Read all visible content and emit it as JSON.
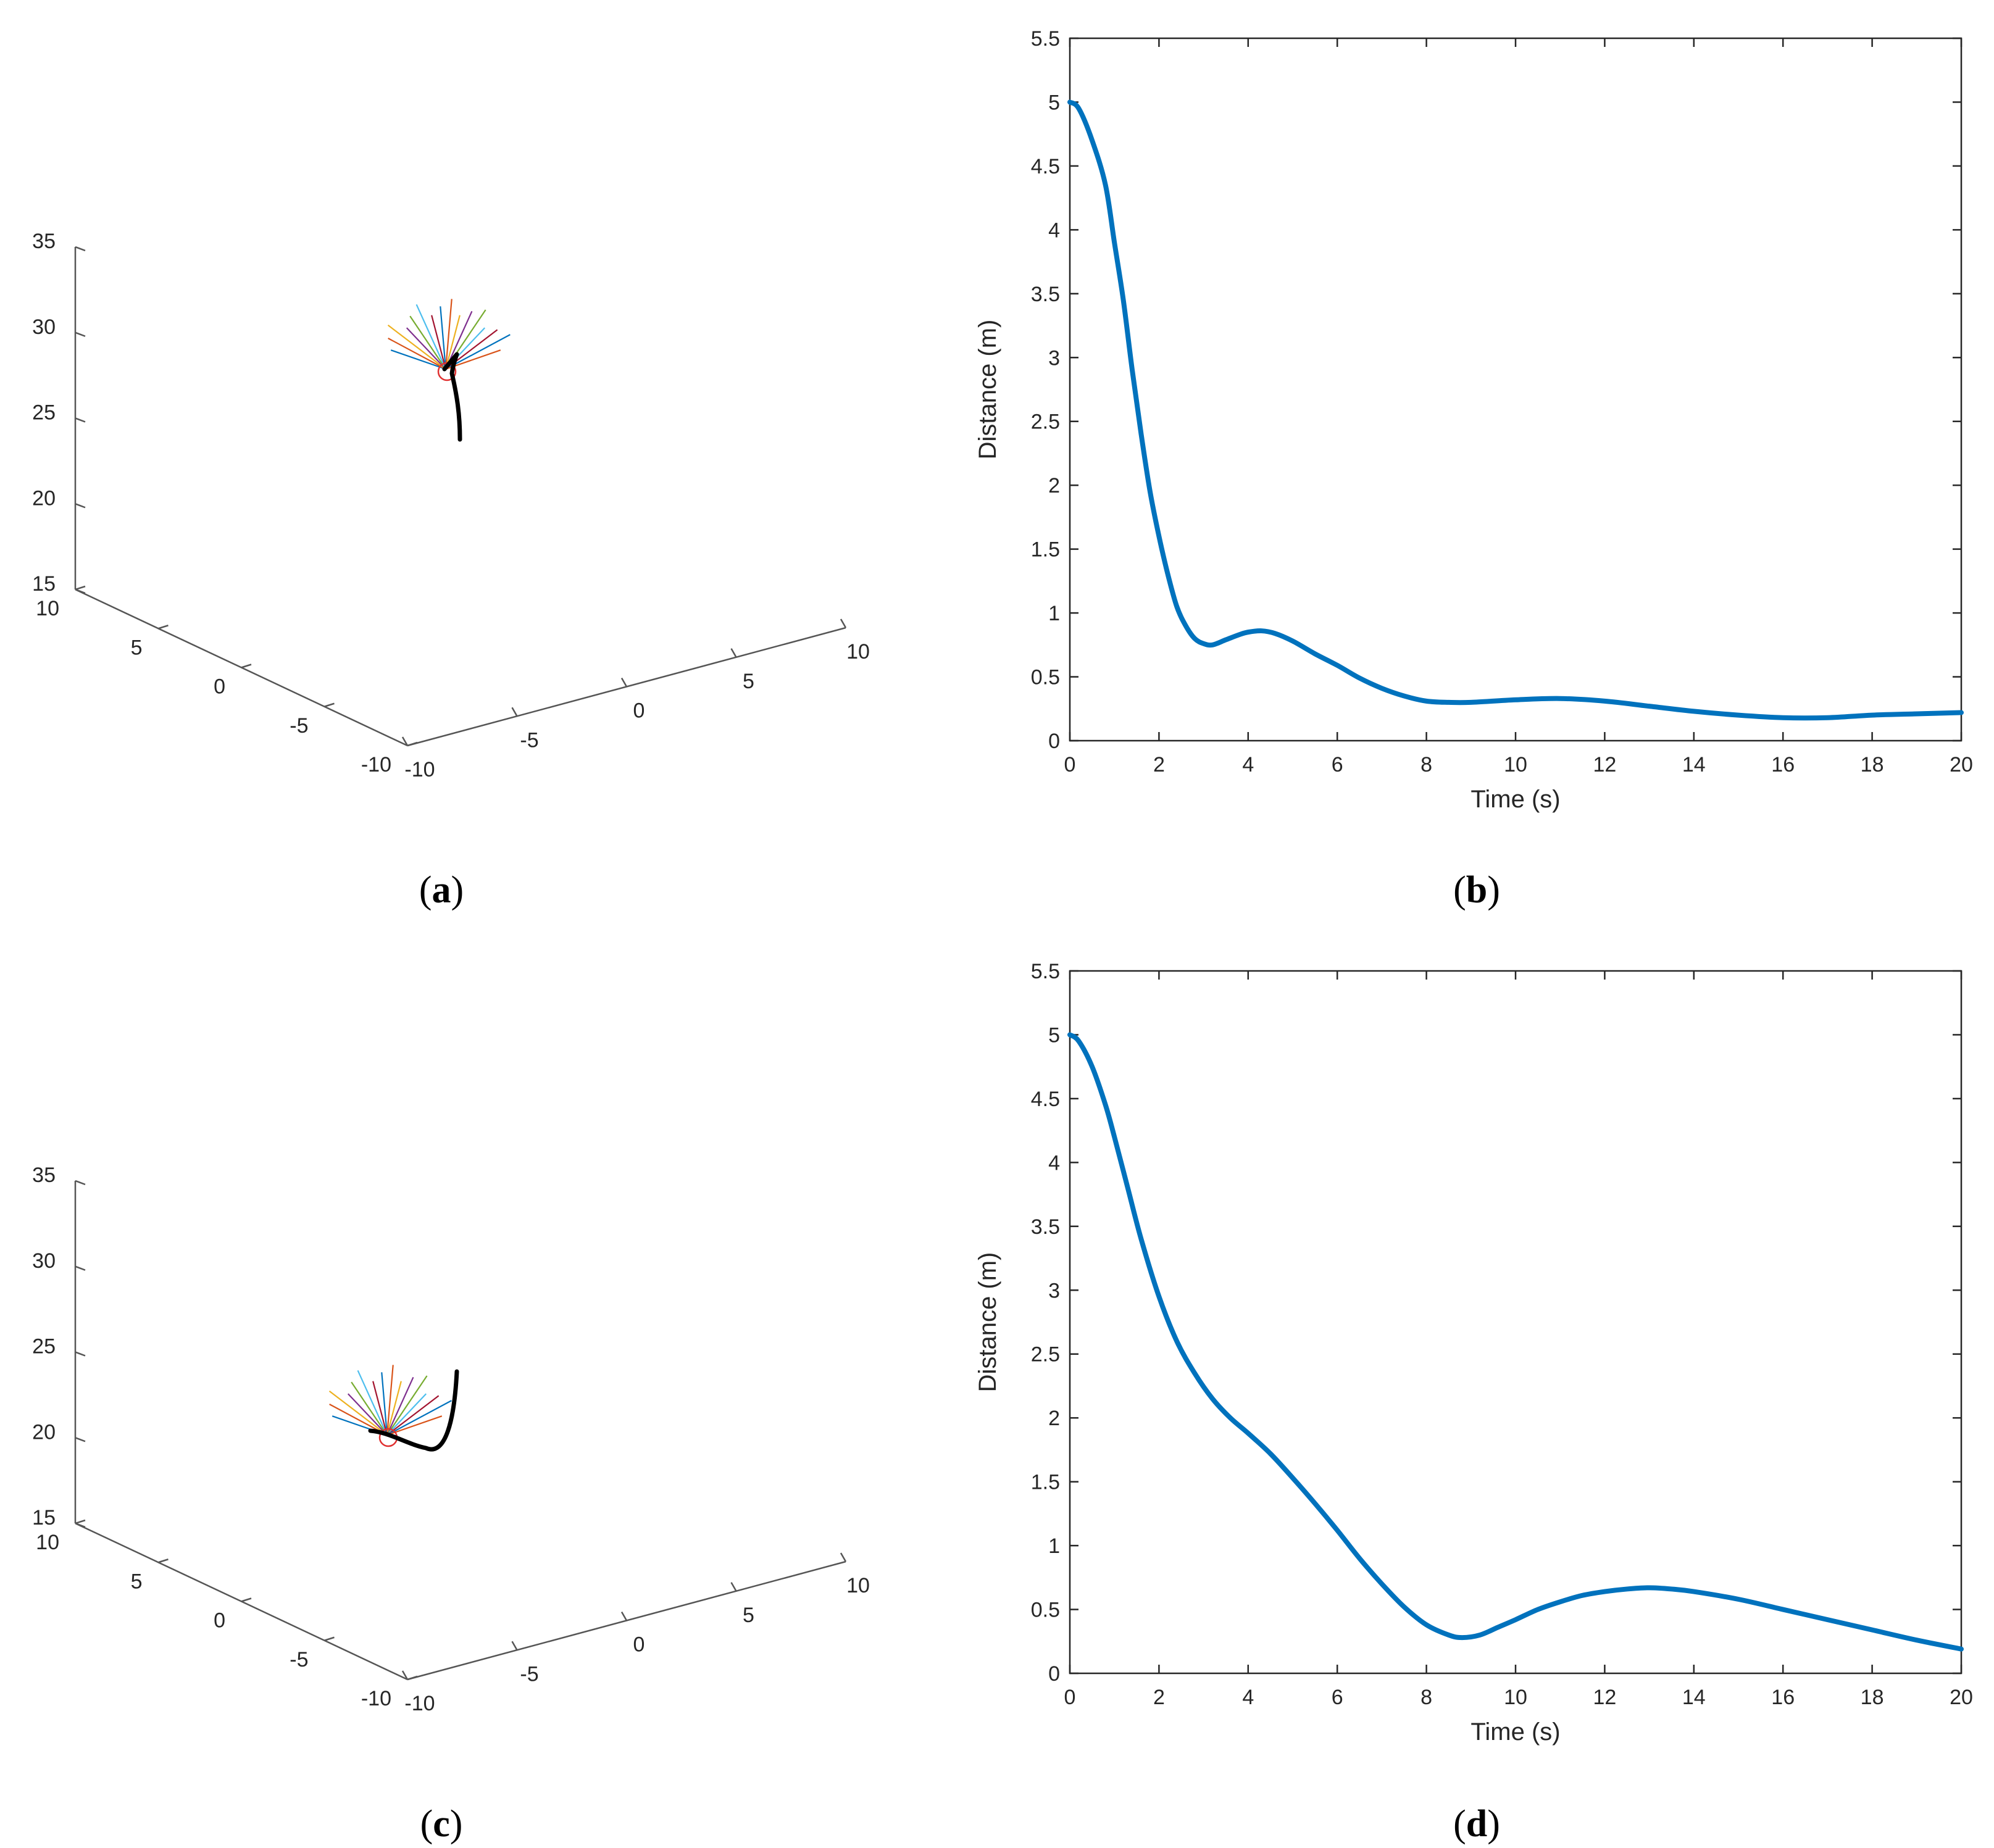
{
  "colors": {
    "line2d": "#0072BD",
    "axis": "#262626",
    "axis3d": "#555555",
    "trajectory": "#000000",
    "target": "#e03030",
    "fan": [
      "#0072BD",
      "#D95319",
      "#EDB120",
      "#7E2F8E",
      "#77AC30",
      "#4DBEEE",
      "#A2142F"
    ]
  },
  "panels": [
    {
      "id": "a",
      "caption_letter": "a",
      "chart_data": {
        "type": "line3d",
        "xlim": [
          -10,
          10
        ],
        "ylim": [
          -10,
          10
        ],
        "zlim": [
          15,
          35
        ],
        "x_ticks": [
          "-10",
          "-5",
          "0",
          "5",
          "10"
        ],
        "y_ticks": [
          "-10",
          "-5",
          "0",
          "5",
          "10"
        ],
        "z_ticks": [
          "15",
          "20",
          "25",
          "30",
          "35"
        ],
        "grid": false,
        "trajectory_shape": "vertical-rise-with-hook",
        "fan_rays": 16
      }
    },
    {
      "id": "b",
      "caption_letter": "b",
      "chart_data": {
        "type": "line",
        "xlabel": "Time (s)",
        "ylabel": "Distance (m)",
        "xlim": [
          0,
          20
        ],
        "ylim": [
          0,
          5.5
        ],
        "x_ticks": [
          "0",
          "2",
          "4",
          "6",
          "8",
          "10",
          "12",
          "14",
          "16",
          "18",
          "20"
        ],
        "y_ticks": [
          "0",
          "0.5",
          "1",
          "1.5",
          "2",
          "2.5",
          "3",
          "3.5",
          "4",
          "4.5",
          "5",
          "5.5"
        ],
        "grid": false,
        "series": [
          {
            "x": [
              0,
              0.2,
              0.5,
              0.8,
              1.0,
              1.2,
              1.4,
              1.6,
              1.8,
              2.0,
              2.2,
              2.4,
              2.6,
              2.8,
              3.0,
              3.2,
              3.5,
              3.8,
              4.0,
              4.3,
              4.6,
              5.0,
              5.5,
              6.0,
              6.5,
              7.0,
              7.5,
              8.0,
              8.5,
              9.0,
              10.0,
              11.0,
              12.0,
              13.0,
              14.0,
              15.0,
              16.0,
              17.0,
              18.0,
              19.0,
              20.0
            ],
            "y": [
              5.0,
              4.95,
              4.7,
              4.35,
              3.9,
              3.45,
              2.9,
              2.4,
              1.95,
              1.6,
              1.3,
              1.05,
              0.9,
              0.8,
              0.76,
              0.75,
              0.79,
              0.83,
              0.85,
              0.86,
              0.84,
              0.78,
              0.68,
              0.59,
              0.49,
              0.41,
              0.35,
              0.31,
              0.3,
              0.3,
              0.32,
              0.33,
              0.31,
              0.27,
              0.23,
              0.2,
              0.18,
              0.18,
              0.2,
              0.21,
              0.22
            ]
          }
        ]
      }
    },
    {
      "id": "c",
      "caption_letter": "c",
      "chart_data": {
        "type": "line3d",
        "xlim": [
          -10,
          10
        ],
        "ylim": [
          -10,
          10
        ],
        "zlim": [
          15,
          35
        ],
        "x_ticks": [
          "-10",
          "-5",
          "0",
          "5",
          "10"
        ],
        "y_ticks": [
          "-10",
          "-5",
          "0",
          "5",
          "10"
        ],
        "z_ticks": [
          "15",
          "20",
          "25",
          "30",
          "35"
        ],
        "grid": false,
        "trajectory_shape": "descending-u-curve",
        "fan_rays": 16
      }
    },
    {
      "id": "d",
      "caption_letter": "d",
      "chart_data": {
        "type": "line",
        "xlabel": "Time (s)",
        "ylabel": "Distance (m)",
        "xlim": [
          0,
          20
        ],
        "ylim": [
          0,
          5.5
        ],
        "x_ticks": [
          "0",
          "2",
          "4",
          "6",
          "8",
          "10",
          "12",
          "14",
          "16",
          "18",
          "20"
        ],
        "y_ticks": [
          "0",
          "0.5",
          "1",
          "1.5",
          "2",
          "2.5",
          "3",
          "3.5",
          "4",
          "4.5",
          "5",
          "5.5"
        ],
        "grid": false,
        "series": [
          {
            "x": [
              0,
              0.2,
              0.5,
              0.8,
              1.0,
              1.3,
              1.6,
              2.0,
              2.4,
              2.8,
              3.2,
              3.6,
              4.0,
              4.5,
              5.0,
              5.5,
              6.0,
              6.5,
              7.0,
              7.5,
              8.0,
              8.5,
              8.8,
              9.2,
              9.6,
              10.0,
              10.5,
              11.0,
              11.5,
              12.0,
              12.5,
              13.0,
              13.5,
              14.0,
              15.0,
              16.0,
              17.0,
              18.0,
              19.0,
              20.0
            ],
            "y": [
              5.0,
              4.95,
              4.75,
              4.45,
              4.2,
              3.8,
              3.4,
              2.95,
              2.6,
              2.35,
              2.15,
              2.0,
              1.88,
              1.72,
              1.53,
              1.33,
              1.12,
              0.9,
              0.7,
              0.52,
              0.38,
              0.3,
              0.28,
              0.3,
              0.36,
              0.42,
              0.5,
              0.56,
              0.61,
              0.64,
              0.66,
              0.67,
              0.66,
              0.64,
              0.58,
              0.5,
              0.42,
              0.34,
              0.26,
              0.19
            ]
          }
        ]
      }
    }
  ]
}
